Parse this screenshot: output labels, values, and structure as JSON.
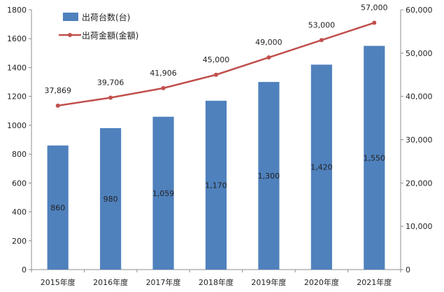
{
  "chart_data": {
    "type": "bar+line",
    "categories": [
      "2015年度",
      "2016年度",
      "2017年度",
      "2018年度",
      "2019年度",
      "2020年度",
      "2021年度"
    ],
    "series": [
      {
        "name": "出荷台数(台)",
        "type": "bar",
        "axis": "left",
        "color": "#4f81bd",
        "values": [
          860,
          980,
          1059,
          1170,
          1300,
          1420,
          1550
        ],
        "labels": [
          "860",
          "980",
          "1,059",
          "1,170",
          "1,300",
          "1,420",
          "1,550"
        ]
      },
      {
        "name": "出荷金額(金額)",
        "type": "line",
        "axis": "right",
        "color": "#c0504d",
        "values": [
          37869,
          39706,
          41906,
          45000,
          49000,
          53000,
          57000
        ],
        "labels": [
          "37,869",
          "39,706",
          "41,906",
          "45,000",
          "49,000",
          "53,000",
          "57,000"
        ]
      }
    ],
    "y_left": {
      "range": [
        0,
        1800
      ],
      "ticks": [
        "0",
        "200",
        "400",
        "600",
        "800",
        "1000",
        "1200",
        "1400",
        "1600",
        "1800"
      ]
    },
    "y_right": {
      "range": [
        0,
        60000
      ],
      "ticks": [
        "0",
        "10,000",
        "20,000",
        "30,000",
        "40,000",
        "50,000",
        "60,000"
      ]
    },
    "grid": false,
    "legend_position": "top-left"
  }
}
